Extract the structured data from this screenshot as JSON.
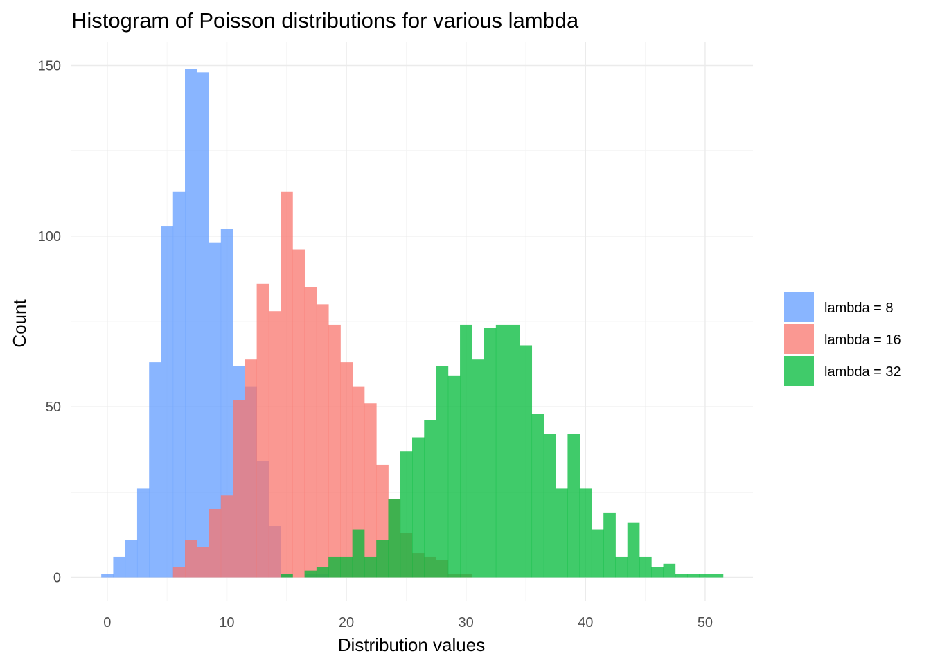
{
  "chart_data": {
    "type": "histogram",
    "title": "Histogram of Poisson distributions for various lambda",
    "xlabel": "Distribution values",
    "ylabel": "Count",
    "xlim": [
      -3,
      54
    ],
    "ylim": [
      -7,
      157
    ],
    "bin_width": 1,
    "x_ticks": [
      0,
      10,
      20,
      30,
      40,
      50
    ],
    "y_ticks": [
      0,
      50,
      100,
      150
    ],
    "grid": true,
    "legend_position": "right",
    "series": [
      {
        "name": "lambda = 8",
        "color": "#619CFF",
        "opacity": 0.75,
        "bins": [
          {
            "x": 0,
            "count": 1
          },
          {
            "x": 1,
            "count": 6
          },
          {
            "x": 2,
            "count": 11
          },
          {
            "x": 3,
            "count": 26
          },
          {
            "x": 4,
            "count": 63
          },
          {
            "x": 5,
            "count": 103
          },
          {
            "x": 6,
            "count": 113
          },
          {
            "x": 7,
            "count": 149
          },
          {
            "x": 8,
            "count": 148
          },
          {
            "x": 9,
            "count": 98
          },
          {
            "x": 10,
            "count": 102
          },
          {
            "x": 11,
            "count": 62
          },
          {
            "x": 12,
            "count": 56
          },
          {
            "x": 13,
            "count": 34
          },
          {
            "x": 14,
            "count": 15
          },
          {
            "x": 15,
            "count": 1
          },
          {
            "x": 17,
            "count": 1
          },
          {
            "x": 18,
            "count": 1
          }
        ]
      },
      {
        "name": "lambda = 16",
        "color": "#F8766D",
        "opacity": 0.75,
        "bins": [
          {
            "x": 6,
            "count": 3
          },
          {
            "x": 7,
            "count": 11
          },
          {
            "x": 8,
            "count": 9
          },
          {
            "x": 9,
            "count": 20
          },
          {
            "x": 10,
            "count": 24
          },
          {
            "x": 11,
            "count": 52
          },
          {
            "x": 12,
            "count": 64
          },
          {
            "x": 13,
            "count": 86
          },
          {
            "x": 14,
            "count": 78
          },
          {
            "x": 15,
            "count": 113
          },
          {
            "x": 16,
            "count": 96
          },
          {
            "x": 17,
            "count": 85
          },
          {
            "x": 18,
            "count": 80
          },
          {
            "x": 19,
            "count": 74
          },
          {
            "x": 20,
            "count": 63
          },
          {
            "x": 21,
            "count": 56
          },
          {
            "x": 22,
            "count": 51
          },
          {
            "x": 23,
            "count": 33
          },
          {
            "x": 24,
            "count": 23
          },
          {
            "x": 25,
            "count": 13
          },
          {
            "x": 26,
            "count": 7
          },
          {
            "x": 27,
            "count": 6
          },
          {
            "x": 28,
            "count": 5
          },
          {
            "x": 29,
            "count": 1
          },
          {
            "x": 30,
            "count": 1
          }
        ]
      },
      {
        "name": "lambda = 32",
        "color": "#00BA38",
        "opacity": 0.75,
        "bins": [
          {
            "x": 15,
            "count": 1
          },
          {
            "x": 17,
            "count": 2
          },
          {
            "x": 18,
            "count": 3
          },
          {
            "x": 19,
            "count": 6
          },
          {
            "x": 20,
            "count": 6
          },
          {
            "x": 21,
            "count": 14
          },
          {
            "x": 22,
            "count": 6
          },
          {
            "x": 23,
            "count": 11
          },
          {
            "x": 24,
            "count": 23
          },
          {
            "x": 25,
            "count": 37
          },
          {
            "x": 26,
            "count": 41
          },
          {
            "x": 27,
            "count": 46
          },
          {
            "x": 28,
            "count": 62
          },
          {
            "x": 29,
            "count": 59
          },
          {
            "x": 30,
            "count": 74
          },
          {
            "x": 31,
            "count": 64
          },
          {
            "x": 32,
            "count": 73
          },
          {
            "x": 33,
            "count": 74
          },
          {
            "x": 34,
            "count": 74
          },
          {
            "x": 35,
            "count": 68
          },
          {
            "x": 36,
            "count": 48
          },
          {
            "x": 37,
            "count": 42
          },
          {
            "x": 38,
            "count": 26
          },
          {
            "x": 39,
            "count": 42
          },
          {
            "x": 40,
            "count": 26
          },
          {
            "x": 41,
            "count": 14
          },
          {
            "x": 42,
            "count": 19
          },
          {
            "x": 43,
            "count": 6
          },
          {
            "x": 44,
            "count": 16
          },
          {
            "x": 45,
            "count": 6
          },
          {
            "x": 46,
            "count": 3
          },
          {
            "x": 47,
            "count": 4
          },
          {
            "x": 48,
            "count": 1
          },
          {
            "x": 49,
            "count": 1
          },
          {
            "x": 50,
            "count": 1
          },
          {
            "x": 51,
            "count": 1
          }
        ]
      }
    ]
  }
}
